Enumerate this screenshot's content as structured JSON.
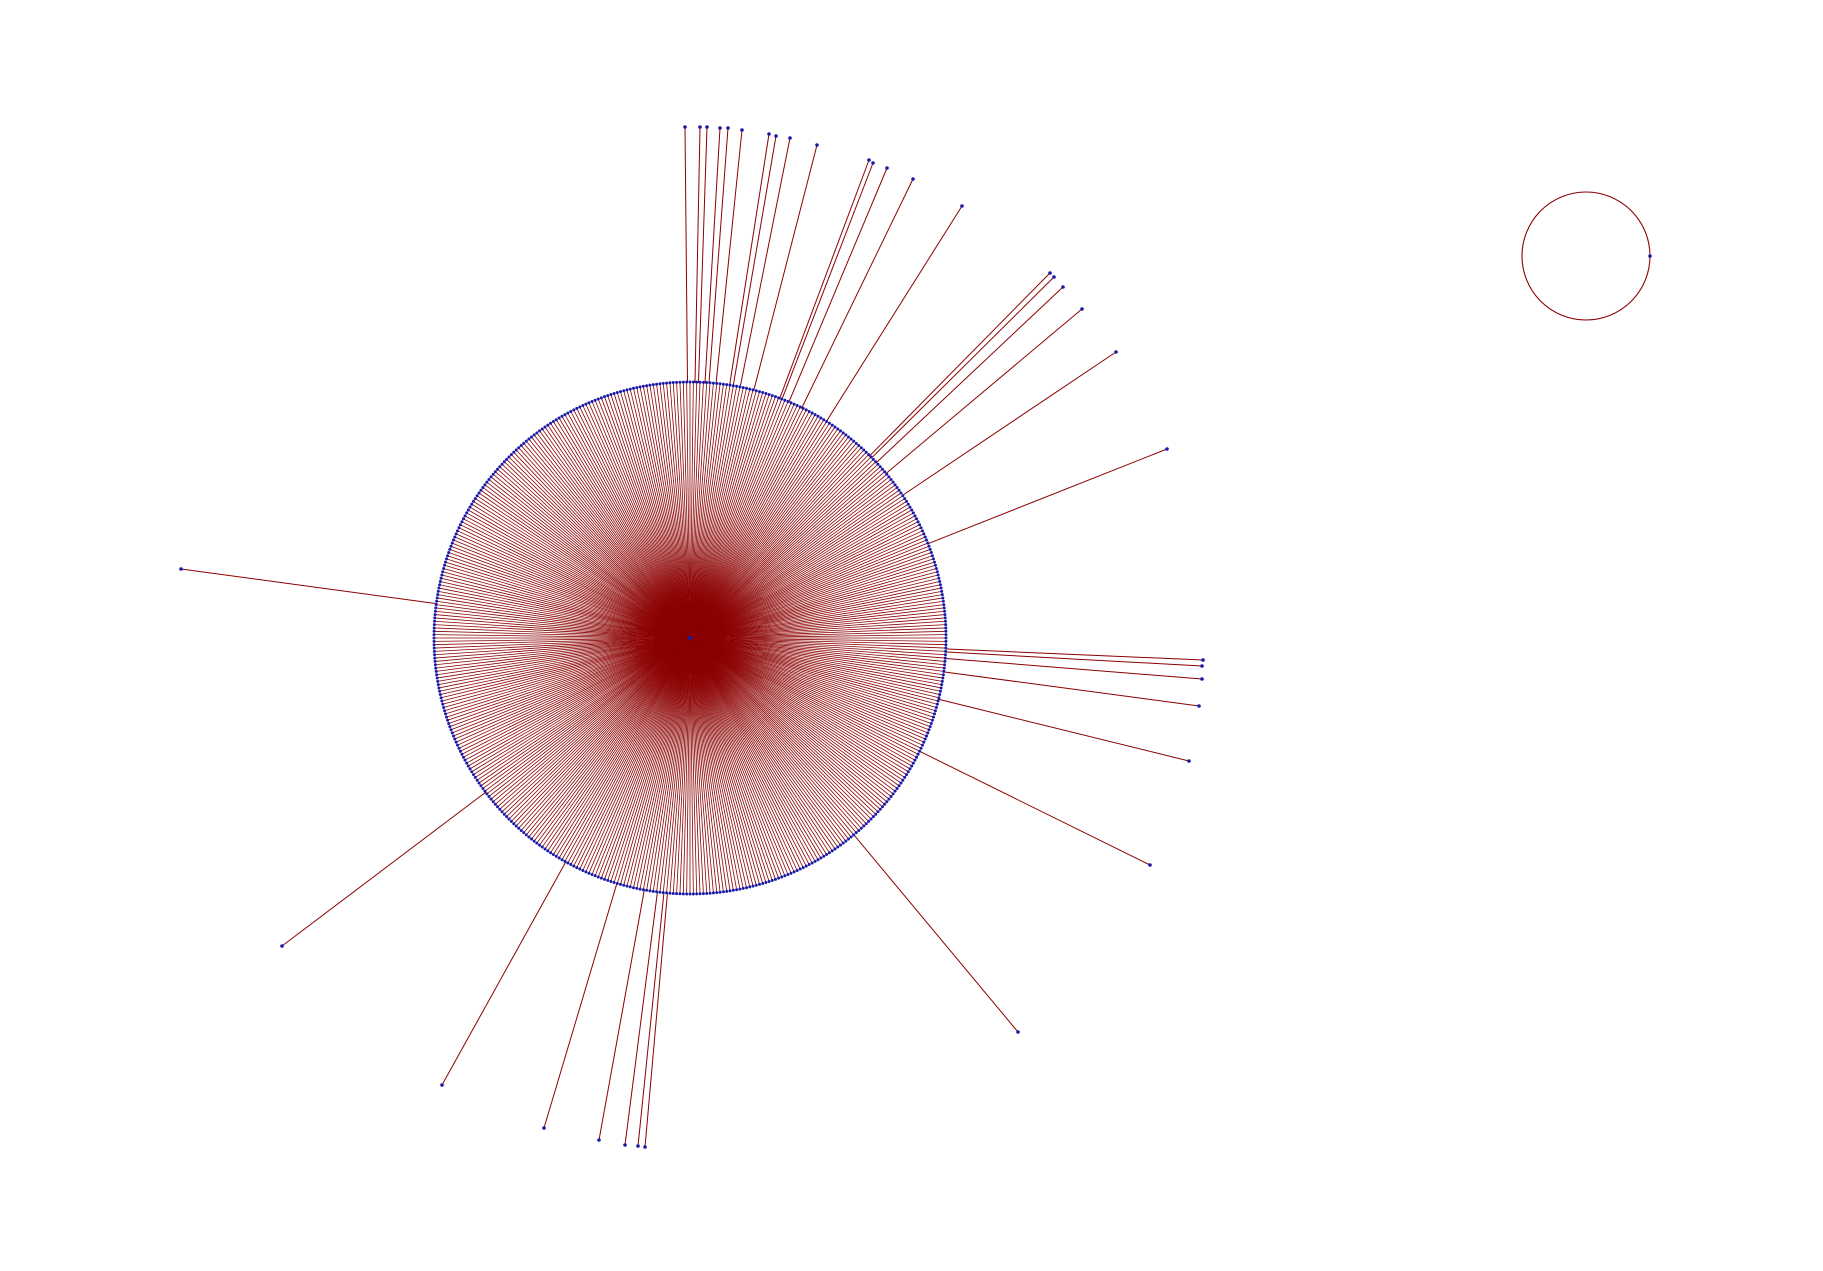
{
  "graph": {
    "edge_color": "#8b0000",
    "node_color": "#1a1aa8",
    "components": [
      {
        "kind": "star",
        "hub_count": 1,
        "ring_leaf_count": 480,
        "pendant_branch_count": 36
      },
      {
        "kind": "self-loop",
        "node_count": 1
      }
    ]
  }
}
